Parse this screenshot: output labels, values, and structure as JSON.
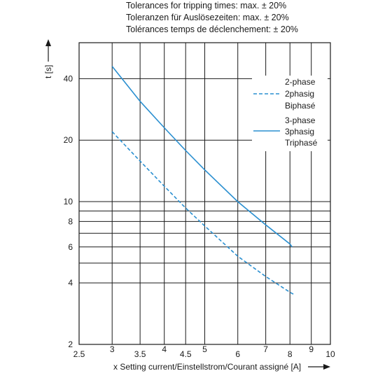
{
  "header": {
    "lines": [
      "Tolerances for tripping times: max. ± 20%",
      "Toleranzen für Auslösezeiten: max. ± 20%",
      "Tolérances temps de déclenchement: ± 20%"
    ]
  },
  "chart_data": {
    "type": "line",
    "xlabel": "x Setting current/Einstellstrom/Courant assigné [A]",
    "ylabel": "t [s]",
    "xscale": "log",
    "yscale": "log",
    "xlim": [
      2.5,
      10
    ],
    "ylim": [
      2,
      60
    ],
    "x_ticks": [
      {
        "value": 2.5,
        "label": "2.5"
      },
      {
        "value": 3,
        "label": "3"
      },
      {
        "value": 3.5,
        "label": "3.5"
      },
      {
        "value": 4,
        "label": "4"
      },
      {
        "value": 4.5,
        "label": "4.5"
      },
      {
        "value": 5,
        "label": "5"
      },
      {
        "value": 6,
        "label": "6"
      },
      {
        "value": 7,
        "label": "7"
      },
      {
        "value": 8,
        "label": "8"
      },
      {
        "value": 9,
        "label": "9"
      },
      {
        "value": 10,
        "label": "10"
      }
    ],
    "y_ticks": [
      {
        "value": 2,
        "label": "2"
      },
      {
        "value": 4,
        "label": "4"
      },
      {
        "value": 6,
        "label": "6"
      },
      {
        "value": 8,
        "label": "8"
      },
      {
        "value": 10,
        "label": "10"
      },
      {
        "value": 20,
        "label": "20"
      },
      {
        "value": 40,
        "label": "40"
      }
    ],
    "y_gridlines": [
      2,
      4,
      5,
      6,
      7,
      8,
      9,
      10,
      20,
      40
    ],
    "grid": true,
    "legend_position": "top-right",
    "series": [
      {
        "name": "2-phase / 2phasig / Biphasé",
        "legend_lines": [
          "2-phase",
          "2phasig",
          "Biphasé"
        ],
        "style": "dashed",
        "color": "#2a8fd0",
        "x": [
          3.0,
          3.5,
          4.0,
          4.5,
          5.0,
          6.0,
          7.0,
          8.0,
          8.2
        ],
        "y": [
          22.0,
          15.8,
          11.9,
          9.3,
          7.6,
          5.4,
          4.3,
          3.6,
          3.5
        ]
      },
      {
        "name": "3-phase / 3phasig / Triphasé",
        "legend_lines": [
          "3-phase",
          "3phasig",
          "Triphasé"
        ],
        "style": "solid",
        "color": "#2a8fd0",
        "x": [
          3.0,
          3.5,
          4.0,
          4.5,
          5.0,
          6.0,
          7.0,
          8.0,
          8.1
        ],
        "y": [
          46.0,
          31.0,
          23.0,
          17.8,
          14.3,
          10.0,
          7.7,
          6.2,
          6.0
        ]
      }
    ]
  }
}
